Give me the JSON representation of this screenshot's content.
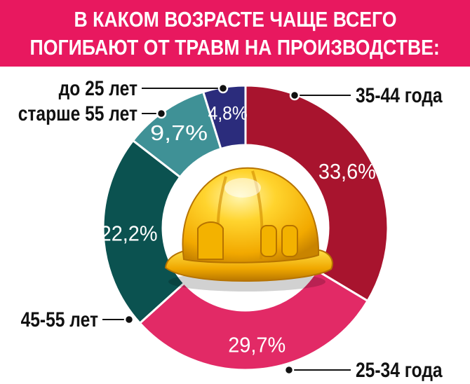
{
  "title": {
    "line1": "В КАКОМ ВОЗРАСТЕ ЧАЩЕ ВСЕГО",
    "line2": "ПОГИБАЮТ ОТ ТРАВМ НА ПРОИЗВОДСТВЕ:"
  },
  "chart_data": {
    "type": "pie",
    "subtype": "donut",
    "title": "В КАКОМ ВОЗРАСТЕ ЧАЩЕ ВСЕГО ПОГИБАЮТ ОТ ТРАВМ НА ПРОИЗВОДСТВЕ:",
    "start": "top",
    "direction": "clockwise",
    "slices": [
      {
        "label": "35-44 года",
        "value": 33.6,
        "value_label": "33,6%",
        "color": "#a8142e"
      },
      {
        "label": "25-34 года",
        "value": 29.7,
        "value_label": "29,7%",
        "color": "#e22a66"
      },
      {
        "label": "45-55 лет",
        "value": 22.2,
        "value_label": "22,2%",
        "color": "#0b5250"
      },
      {
        "label": "старше 55 лет",
        "value": 9.7,
        "value_label": "9,7%",
        "color": "#3f9196"
      },
      {
        "label": "до 25 лет",
        "value": 4.8,
        "value_label": "4,8%",
        "color": "#2b2c7c"
      }
    ],
    "center_icon": "hard-hat-icon"
  }
}
